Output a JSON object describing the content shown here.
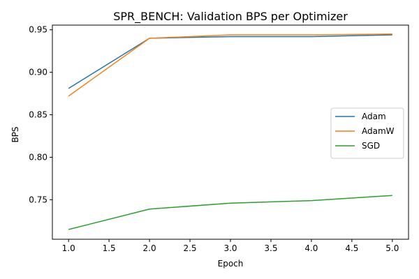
{
  "chart_data": {
    "type": "line",
    "title": "SPR_BENCH: Validation BPS per Optimizer",
    "xlabel": "Epoch",
    "ylabel": "BPS",
    "x": [
      1,
      2,
      3,
      4,
      5
    ],
    "xlim": [
      0.8,
      5.2
    ],
    "ylim": [
      0.7035,
      0.9555
    ],
    "xticks": [
      1.0,
      1.5,
      2.0,
      2.5,
      3.0,
      3.5,
      4.0,
      4.5,
      5.0
    ],
    "xtick_labels": [
      "1.0",
      "1.5",
      "2.0",
      "2.5",
      "3.0",
      "3.5",
      "4.0",
      "4.5",
      "5.0"
    ],
    "yticks": [
      0.75,
      0.8,
      0.85,
      0.9,
      0.95
    ],
    "ytick_labels": [
      "0.75",
      "0.80",
      "0.85",
      "0.90",
      "0.95"
    ],
    "grid": false,
    "legend_position": "center-right",
    "series": [
      {
        "name": "Adam",
        "color": "#1f77b4",
        "values": [
          0.881,
          0.94,
          0.942,
          0.942,
          0.944
        ]
      },
      {
        "name": "AdamW",
        "color": "#ff7f0e",
        "values": [
          0.872,
          0.94,
          0.944,
          0.944,
          0.945
        ]
      },
      {
        "name": "SGD",
        "color": "#2ca02c",
        "values": [
          0.715,
          0.739,
          0.746,
          0.749,
          0.755
        ]
      }
    ]
  }
}
